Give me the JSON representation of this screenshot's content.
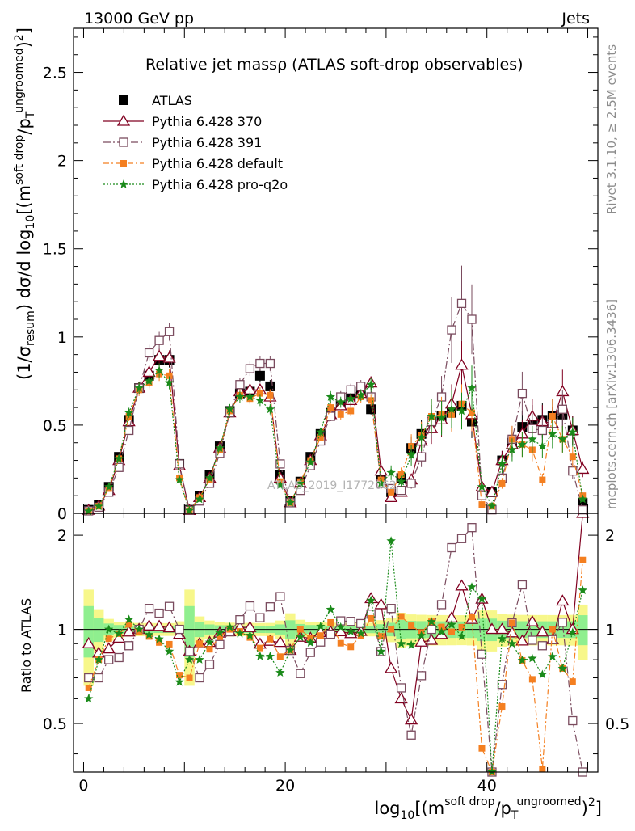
{
  "header": {
    "energy_label": "13000 GeV pp",
    "category_label": "Jets"
  },
  "side_labels": {
    "rivet": "Rivet 3.1.10, ≥ 2.5M events",
    "mcplots": "mcplots.cern.ch [arXiv:1306.3436]"
  },
  "watermark": "ATLAS_2019_I1772062",
  "colors": {
    "ATLAS": "#000000",
    "p370": "#800020",
    "p391": "#7a4b5e",
    "pdef": "#f47f20",
    "pq2o": "#1a8a1a",
    "band_inner": "#8fef8f",
    "band_outer": "#f7f78a"
  },
  "chart_data": {
    "type": "line",
    "title": "Relative jet massρ (ATLAS soft-drop observables)",
    "xlabel": "log10[(m^soft drop/pT^ungroomed)^2]",
    "ylabel": "(1/σresum) dσ/d log10[(m^soft drop/pT^ungroomed)^2]",
    "ratio_ylabel": "Ratio to ATLAS",
    "xlim": [
      -1,
      51
    ],
    "ylim": [
      0,
      2.75
    ],
    "ratio_ylim": [
      0.35,
      2.35
    ],
    "xticks": [
      0,
      20,
      40
    ],
    "yticks": [
      "0",
      "0.5",
      "1",
      "1.5",
      "2",
      "2.5"
    ],
    "ratio_yticks": [
      "0.5",
      "1",
      "2"
    ],
    "x": [
      0.5,
      1.5,
      2.5,
      3.5,
      4.5,
      5.5,
      6.5,
      7.5,
      8.5,
      9.5,
      10.5,
      11.5,
      12.5,
      13.5,
      14.5,
      15.5,
      16.5,
      17.5,
      18.5,
      19.5,
      20.5,
      21.5,
      22.5,
      23.5,
      24.5,
      25.5,
      26.5,
      27.5,
      28.5,
      29.5,
      30.5,
      31.5,
      32.5,
      33.5,
      34.5,
      35.5,
      36.5,
      37.5,
      38.5,
      39.5,
      40.5,
      41.5,
      42.5,
      43.5,
      44.5,
      45.5,
      46.5,
      47.5,
      48.5,
      49.5
    ],
    "series": [
      {
        "name": "ATLAS",
        "values": [
          0.02,
          0.05,
          0.15,
          0.32,
          0.53,
          0.71,
          0.78,
          0.87,
          0.87,
          0.28,
          0.02,
          0.1,
          0.22,
          0.38,
          0.58,
          0.68,
          0.69,
          0.78,
          0.72,
          0.22,
          0.07,
          0.18,
          0.32,
          0.45,
          0.57,
          0.62,
          0.66,
          0.69,
          0.59,
          0.2,
          0.12,
          0.2,
          0.37,
          0.45,
          0.52,
          0.55,
          0.57,
          0.61,
          0.52,
          0.12,
          0.12,
          0.3,
          0.4,
          0.49,
          0.52,
          0.53,
          0.55,
          0.56,
          0.47,
          0.06
        ]
      },
      {
        "name": "Pythia 6.428 370",
        "values": [
          0.018,
          0.042,
          0.13,
          0.3,
          0.52,
          0.71,
          0.8,
          0.89,
          0.88,
          0.27,
          0.017,
          0.09,
          0.2,
          0.37,
          0.57,
          0.69,
          0.7,
          0.7,
          0.66,
          0.2,
          0.06,
          0.17,
          0.3,
          0.44,
          0.56,
          0.61,
          0.64,
          0.68,
          0.74,
          0.24,
          0.09,
          0.12,
          0.19,
          0.41,
          0.48,
          0.53,
          0.62,
          0.84,
          0.56,
          0.15,
          0.12,
          0.3,
          0.39,
          0.45,
          0.55,
          0.52,
          0.51,
          0.69,
          0.47,
          0.25
        ]
      },
      {
        "name": "Pythia 6.428 391",
        "values": [
          0.014,
          0.035,
          0.12,
          0.26,
          0.47,
          0.71,
          0.91,
          0.98,
          1.03,
          0.28,
          0.017,
          0.07,
          0.17,
          0.34,
          0.57,
          0.73,
          0.82,
          0.85,
          0.85,
          0.28,
          0.06,
          0.13,
          0.27,
          0.41,
          0.55,
          0.66,
          0.7,
          0.72,
          0.66,
          0.17,
          0.14,
          0.13,
          0.17,
          0.32,
          0.52,
          0.66,
          1.04,
          1.19,
          1.1,
          0.1,
          0.02,
          0.2,
          0.42,
          0.68,
          0.48,
          0.47,
          0.51,
          0.59,
          0.24,
          0.02
        ]
      },
      {
        "name": "Pythia 6.428 default",
        "values": [
          0.013,
          0.04,
          0.14,
          0.31,
          0.55,
          0.7,
          0.74,
          0.79,
          0.78,
          0.2,
          0.014,
          0.09,
          0.19,
          0.36,
          0.58,
          0.67,
          0.65,
          0.68,
          0.67,
          0.18,
          0.06,
          0.18,
          0.3,
          0.43,
          0.6,
          0.56,
          0.58,
          0.66,
          0.64,
          0.19,
          0.12,
          0.22,
          0.38,
          0.44,
          0.55,
          0.56,
          0.56,
          0.62,
          0.57,
          0.05,
          0.04,
          0.17,
          0.42,
          0.39,
          0.36,
          0.19,
          0.55,
          0.42,
          0.32,
          0.1
        ]
      },
      {
        "name": "Pythia 6.428 pro-q2o",
        "values": [
          0.012,
          0.04,
          0.15,
          0.31,
          0.57,
          0.71,
          0.75,
          0.81,
          0.74,
          0.19,
          0.016,
          0.08,
          0.2,
          0.37,
          0.59,
          0.66,
          0.66,
          0.64,
          0.59,
          0.16,
          0.06,
          0.17,
          0.29,
          0.46,
          0.66,
          0.63,
          0.65,
          0.67,
          0.73,
          0.17,
          0.23,
          0.18,
          0.33,
          0.43,
          0.55,
          0.54,
          0.59,
          0.58,
          0.71,
          0.15,
          0.04,
          0.28,
          0.36,
          0.39,
          0.42,
          0.38,
          0.45,
          0.42,
          0.46,
          0.08
        ]
      }
    ],
    "legend": [
      "ATLAS",
      "Pythia 6.428 370",
      "Pythia 6.428 391",
      "Pythia 6.428 default",
      "Pythia 6.428 pro-q2o"
    ],
    "legend_placement": "top-left",
    "grid": false
  }
}
